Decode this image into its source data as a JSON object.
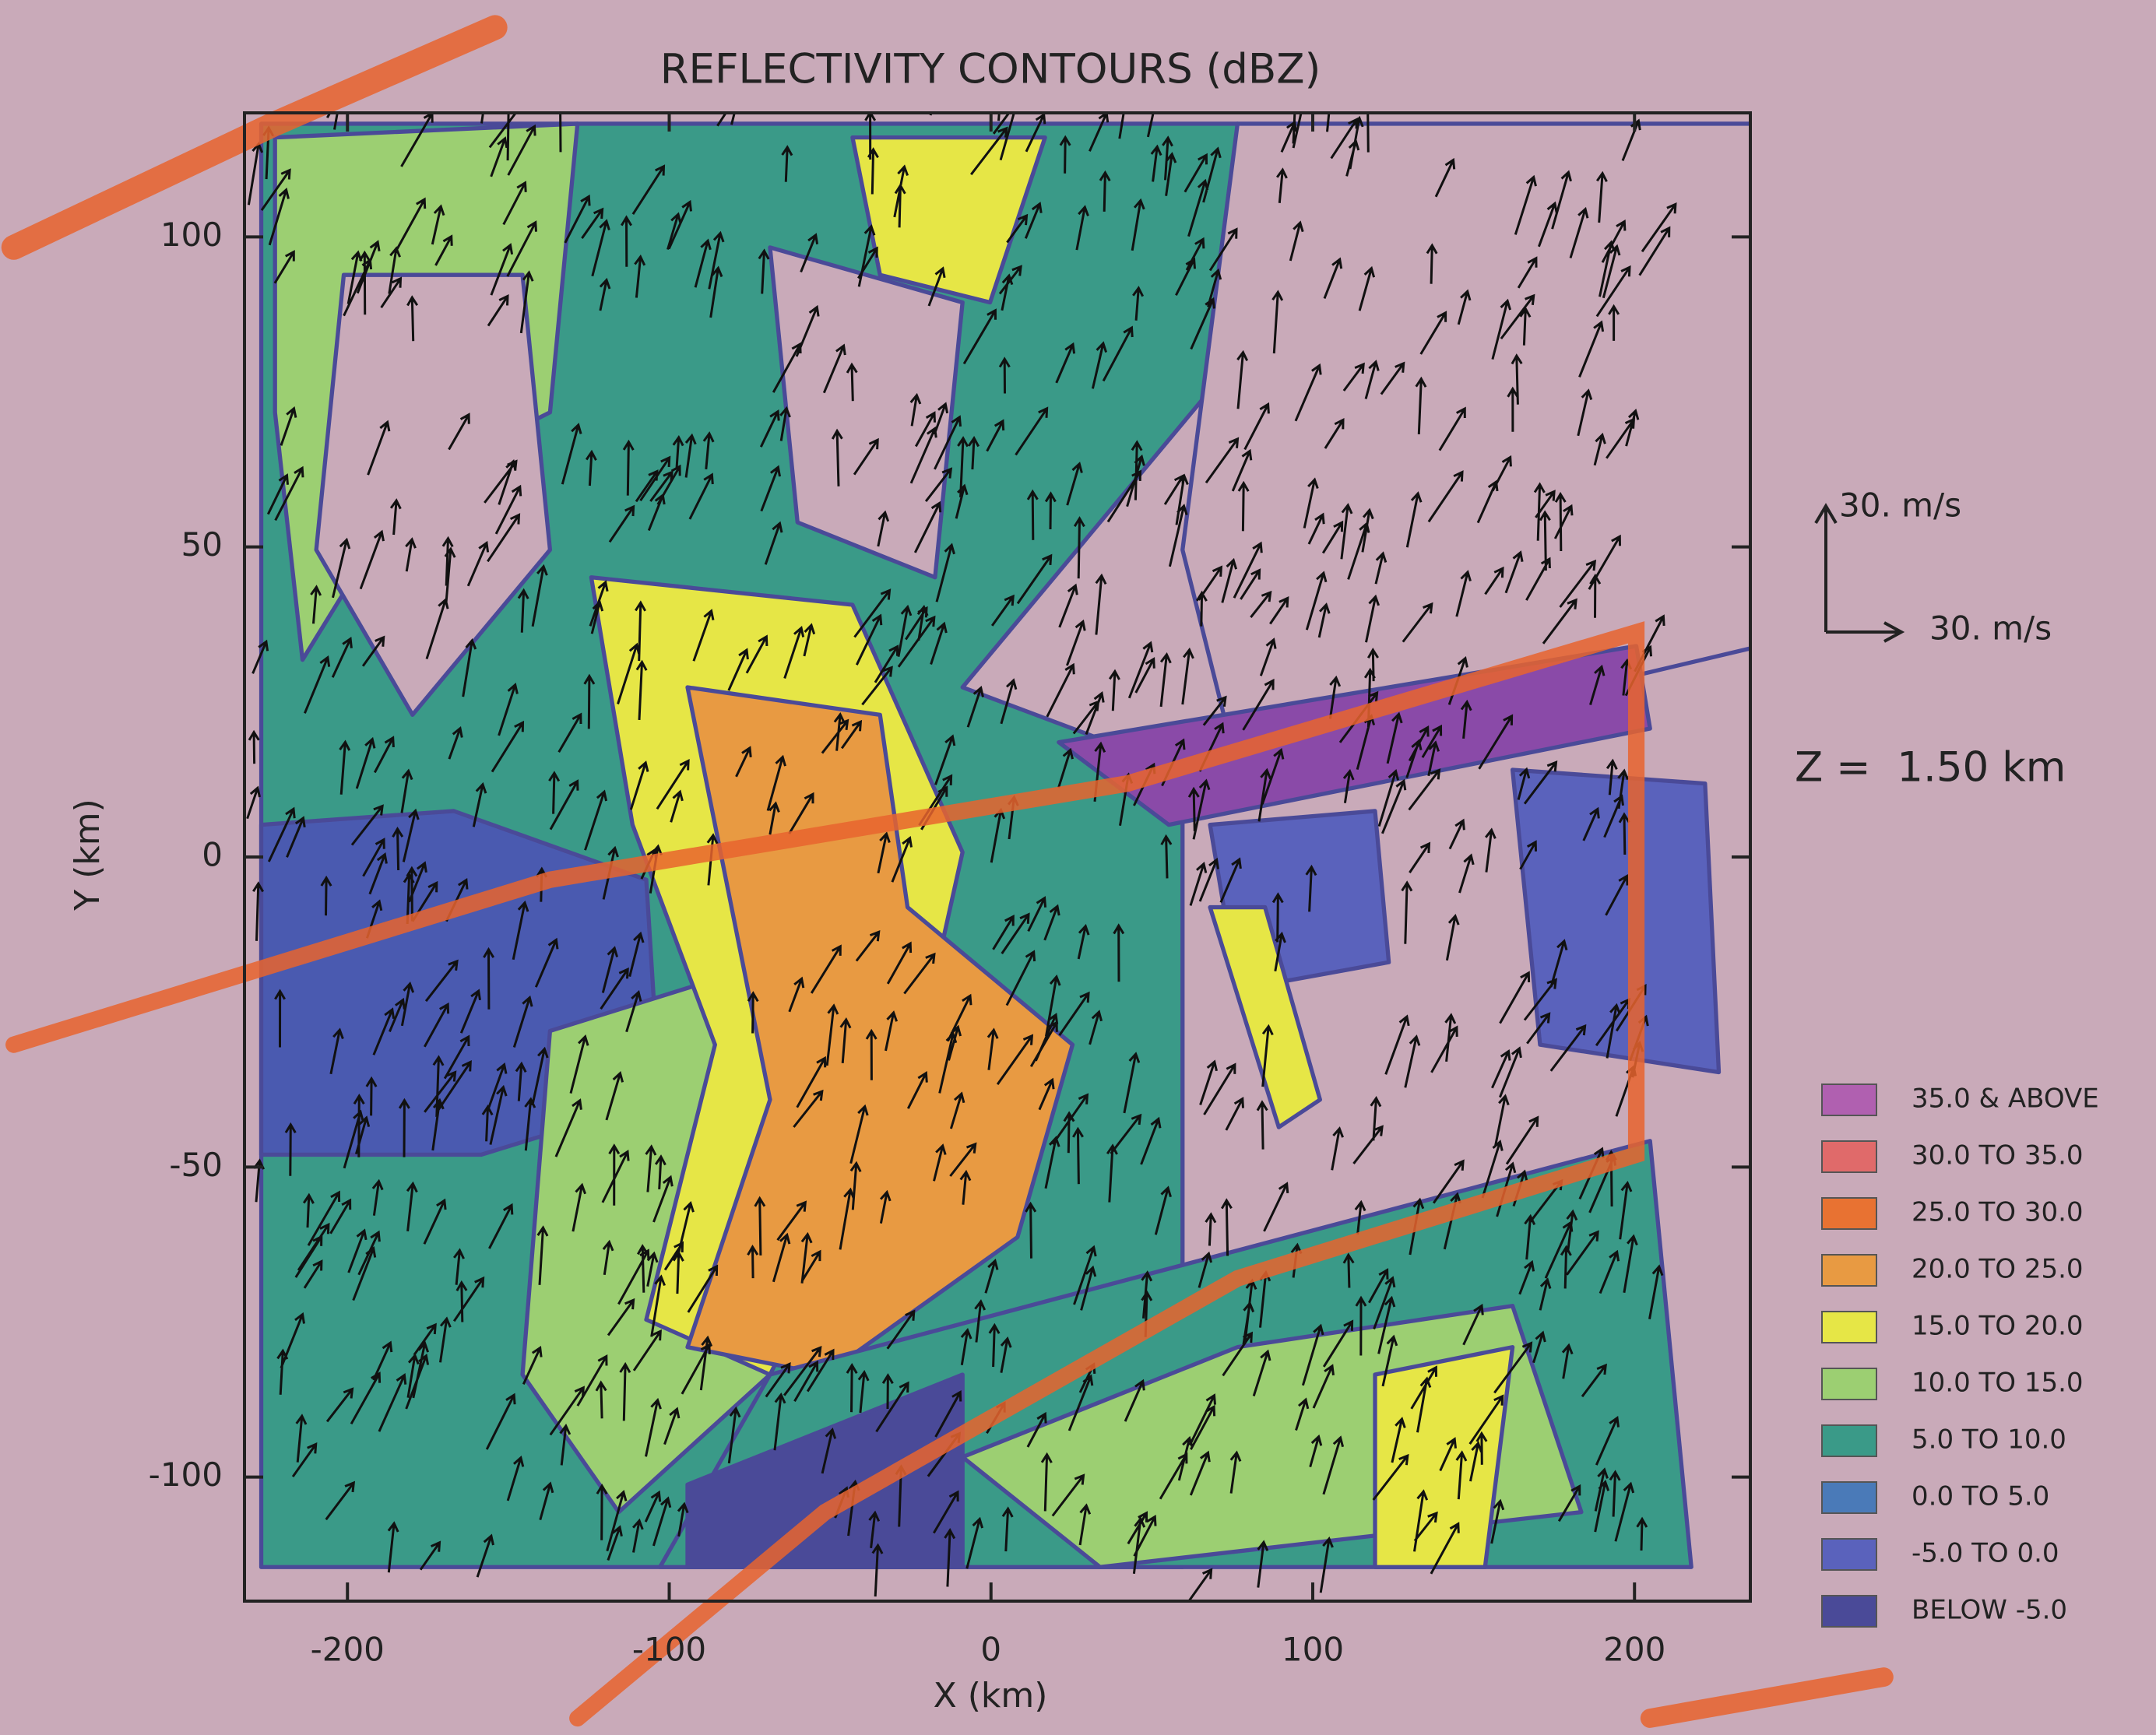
{
  "chart_data": {
    "type": "contour",
    "title": "REFLECTIVITY CONTOURS (dBZ)",
    "x_label": "X (km)",
    "y_label": "Y (km)",
    "xlim": [
      -232,
      236
    ],
    "ylim": [
      -120,
      120
    ],
    "xticks": [
      -200,
      -100,
      0,
      100,
      200
    ],
    "yticks": [
      -100,
      -50,
      0,
      50,
      100
    ],
    "legend": {
      "position": "right",
      "levels": [
        {
          "name": "35.0 & ABOVE",
          "color": "#b060b0"
        },
        {
          "name": "30.0 TO  35.0",
          "color": "#e06a6a"
        },
        {
          "name": "25.0 TO  30.0",
          "color": "#e87232"
        },
        {
          "name": "20.0 TO  25.0",
          "color": "#e89a42"
        },
        {
          "name": "15.0 TO  20.0",
          "color": "#e6e646"
        },
        {
          "name": "10.0 TO  15.0",
          "color": "#9ccf72"
        },
        {
          "name": "5.0 TO  10.0",
          "color": "#3a9a88"
        },
        {
          "name": "0.0 TO   5.0",
          "color": "#4a7ab8"
        },
        {
          "name": "-5.0 TO   0.0",
          "color": "#5a62bc"
        },
        {
          "name": "BELOW  -5.0",
          "color": "#4a4a98"
        }
      ]
    },
    "vector_scale": {
      "v_label": "30. m/s",
      "u_label": "30. m/s"
    },
    "annotation": "Z =  1.50 km"
  }
}
